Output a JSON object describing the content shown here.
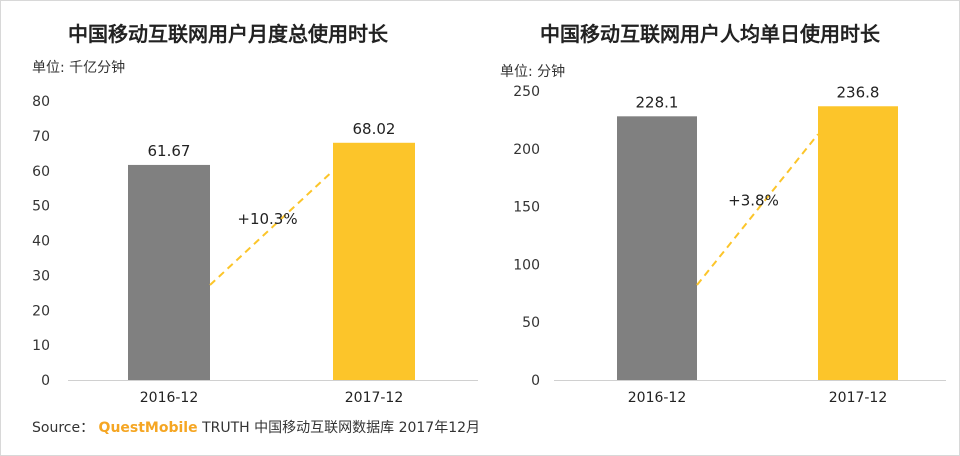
{
  "chart_data": [
    {
      "type": "bar",
      "title": "中国移动互联网用户月度总使用时长",
      "unit": "单位: 千亿分钟",
      "categories": [
        "2016-12",
        "2017-12"
      ],
      "values": [
        61.67,
        68.02
      ],
      "value_labels": [
        "61.67",
        "68.02"
      ],
      "ylim": [
        0,
        80
      ],
      "yticks": [
        0,
        10,
        20,
        30,
        40,
        50,
        60,
        70,
        80
      ],
      "growth_label": "+10.3%",
      "bar_colors": [
        "#808080",
        "#fcc52a"
      ],
      "growth_line_color": "#fcc52a",
      "grid": false
    },
    {
      "type": "bar",
      "title": "中国移动互联网用户人均单日使用时长",
      "unit": "单位: 分钟",
      "categories": [
        "2016-12",
        "2017-12"
      ],
      "values": [
        228.1,
        236.8
      ],
      "value_labels": [
        "228.1",
        "236.8"
      ],
      "ylim": [
        0,
        250
      ],
      "yticks": [
        0,
        50,
        100,
        150,
        200,
        250
      ],
      "growth_label": "+3.8%",
      "bar_colors": [
        "#808080",
        "#fcc52a"
      ],
      "growth_line_color": "#fcc52a",
      "grid": false
    }
  ],
  "source": {
    "prefix": "Source：",
    "brand": "QuestMobile",
    "text": "TRUTH 中国移动互联网数据库 2017年12月"
  }
}
